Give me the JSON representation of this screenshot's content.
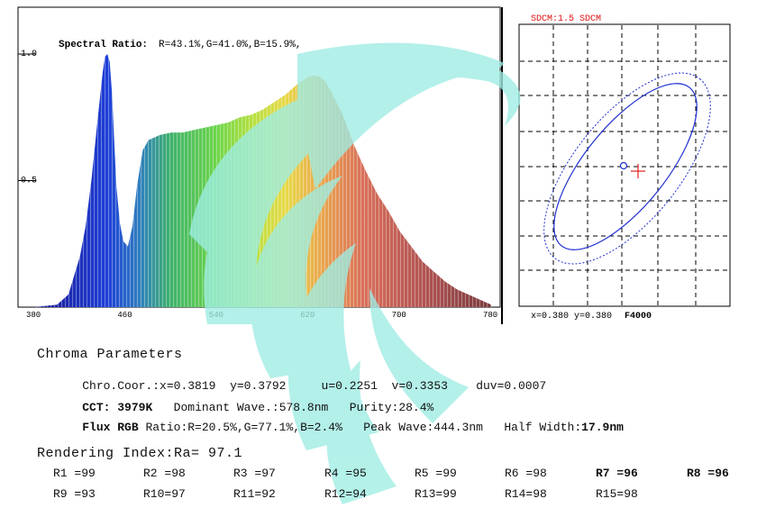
{
  "chart_data": [
    {
      "type": "area",
      "ylabels": [
        "1.0",
        "0.5"
      ],
      "yticks": [
        1.0,
        0.5
      ],
      "xticks": [
        380,
        460,
        540,
        620,
        700,
        780
      ],
      "xlim": [
        380,
        780
      ],
      "ylim": [
        0,
        1.05
      ],
      "annotation_label": "Spectral Ratio:",
      "annotation_value": "R=43.1%,G=41.0%,B=15.9%,",
      "x": [
        380,
        400,
        410,
        420,
        425,
        430,
        435,
        440,
        442,
        444,
        446,
        448,
        450,
        452,
        455,
        458,
        462,
        466,
        470,
        475,
        480,
        485,
        490,
        500,
        510,
        520,
        530,
        540,
        550,
        560,
        570,
        580,
        590,
        600,
        610,
        620,
        625,
        630,
        635,
        640,
        650,
        660,
        670,
        680,
        690,
        700,
        710,
        720,
        730,
        740,
        750,
        760,
        770,
        780
      ],
      "y": [
        0.0,
        0.01,
        0.05,
        0.2,
        0.32,
        0.5,
        0.72,
        0.93,
        0.99,
        1.0,
        0.97,
        0.85,
        0.66,
        0.47,
        0.33,
        0.26,
        0.24,
        0.32,
        0.48,
        0.62,
        0.66,
        0.67,
        0.68,
        0.69,
        0.69,
        0.7,
        0.71,
        0.72,
        0.73,
        0.75,
        0.76,
        0.78,
        0.81,
        0.84,
        0.88,
        0.91,
        0.915,
        0.91,
        0.89,
        0.85,
        0.76,
        0.64,
        0.54,
        0.45,
        0.38,
        0.3,
        0.24,
        0.18,
        0.14,
        0.1,
        0.07,
        0.05,
        0.03,
        0.01
      ]
    },
    {
      "type": "scatter",
      "title": "SDCM:1.5 SDCM",
      "coords_label": "x=0.380 y=0.380",
      "ref_label": "F4000",
      "x": [
        0.38
      ],
      "y": [
        0.38
      ]
    }
  ],
  "chroma": {
    "title": "Chroma Parameters",
    "line1": {
      "label": "Chro.Coor.:",
      "x": "x=0.3819",
      "y": "y=0.3792",
      "u": "u=0.2251",
      "v": "v=0.3353",
      "duv": "duv=0.0007"
    },
    "line2": {
      "cct_label": "CCT:",
      "cct_value": "3979K",
      "dominant": "Dominant Wave.:578.8nm",
      "purity": "Purity:28.4%"
    },
    "line3": {
      "flux_label": "Flux RGB",
      "ratio": "Ratio:R=20.5%,G=77.1%,B=2.4%",
      "peak": "Peak Wave:444.3nm",
      "half_label": "Half Width:",
      "half_value": "17.9nm"
    }
  },
  "rendering": {
    "title": "Rendering Index:Ra= 97.1",
    "row1": [
      "R1 =99",
      "R2 =98",
      "R3 =97",
      "R4 =95",
      "R5 =99",
      "R6 =98",
      "R7 =96",
      "R8 =96"
    ],
    "row2": [
      "R9 =93",
      "R10=97",
      "R11=92",
      "R12=94",
      "R13=99",
      "R14=98",
      "R15=98"
    ]
  },
  "colors": {
    "watermark": "#aef0e8",
    "ellipse": "#1f2fd0",
    "cross": "#e02020",
    "sdcm_title": "#e01010"
  }
}
